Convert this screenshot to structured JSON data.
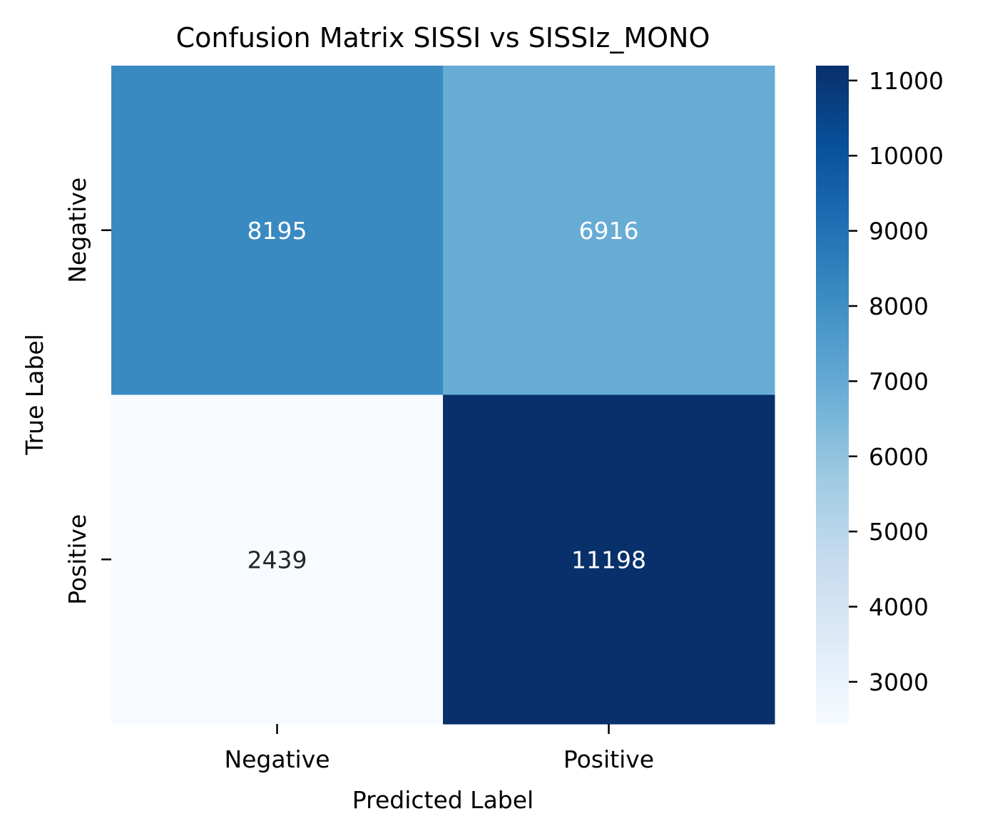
{
  "chart_data": {
    "type": "heatmap",
    "title": "Confusion Matrix SISSI vs SISSIz_MONO",
    "xlabel": "Predicted Label",
    "ylabel": "True Label",
    "x_categories": [
      "Negative",
      "Positive"
    ],
    "y_categories": [
      "Negative",
      "Positive"
    ],
    "values": [
      [
        8195,
        6916
      ],
      [
        2439,
        11198
      ]
    ],
    "colormap": "Blues",
    "colorbar": {
      "range": [
        2439,
        11198
      ],
      "ticks": [
        3000,
        4000,
        5000,
        6000,
        7000,
        8000,
        9000,
        10000,
        11000
      ]
    },
    "annotation_colors": {
      "light": "#ffffff",
      "dark": "#262626"
    }
  }
}
